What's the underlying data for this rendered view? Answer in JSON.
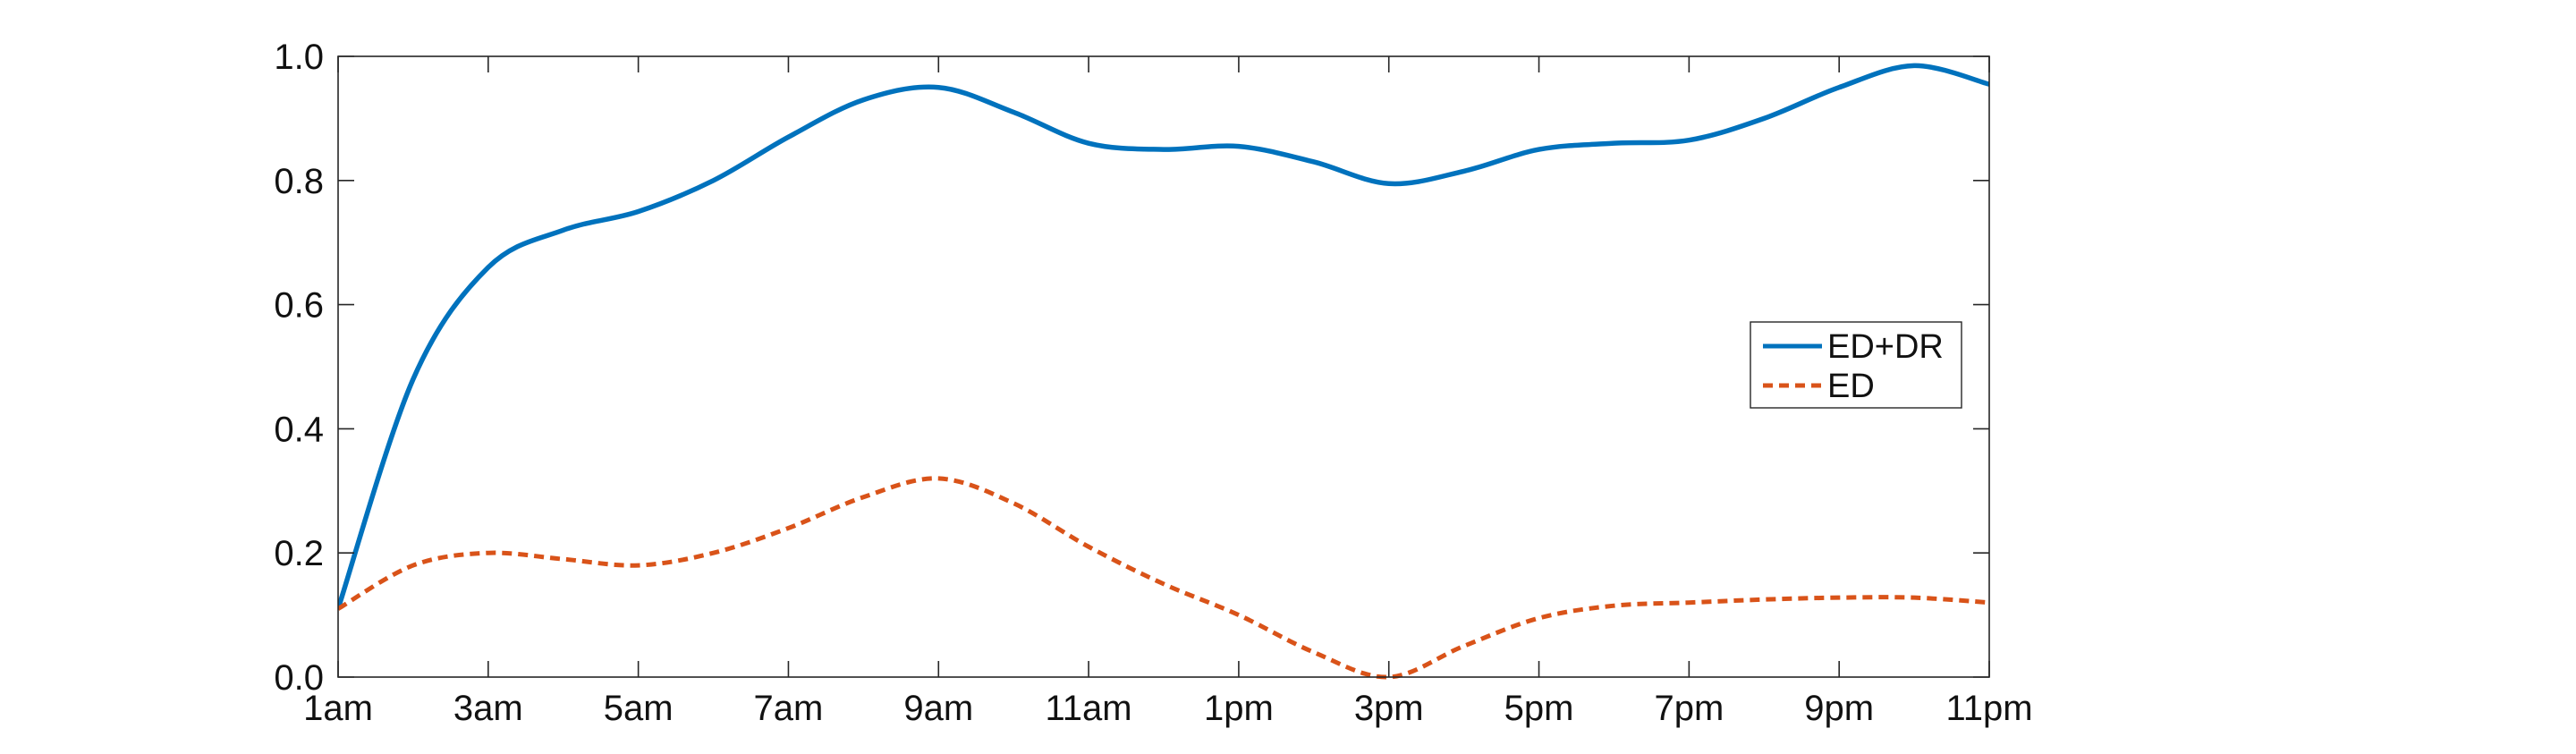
{
  "chart_data": {
    "type": "line",
    "title": "",
    "xlabel": "",
    "ylabel": "",
    "x": [
      1,
      2,
      3,
      4,
      5,
      6,
      7,
      8,
      9,
      10,
      11,
      12,
      13,
      14,
      15,
      16,
      17,
      18,
      19,
      20,
      21,
      22,
      23
    ],
    "xticks": [
      {
        "x": 1,
        "label": "1am"
      },
      {
        "x": 3,
        "label": "3am"
      },
      {
        "x": 5,
        "label": "5am"
      },
      {
        "x": 7,
        "label": "7am"
      },
      {
        "x": 9,
        "label": "9am"
      },
      {
        "x": 11,
        "label": "11am"
      },
      {
        "x": 13,
        "label": "1pm"
      },
      {
        "x": 15,
        "label": "3pm"
      },
      {
        "x": 17,
        "label": "5pm"
      },
      {
        "x": 19,
        "label": "7pm"
      },
      {
        "x": 21,
        "label": "9pm"
      },
      {
        "x": 23,
        "label": "11pm"
      }
    ],
    "yticks": [
      {
        "y": 0.0,
        "label": "0.0"
      },
      {
        "y": 0.2,
        "label": "0.2"
      },
      {
        "y": 0.4,
        "label": "0.4"
      },
      {
        "y": 0.6,
        "label": "0.6"
      },
      {
        "y": 0.8,
        "label": "0.8"
      },
      {
        "y": 1.0,
        "label": "1.0"
      }
    ],
    "xlim": [
      1,
      23
    ],
    "ylim": [
      0,
      1
    ],
    "grid": false,
    "legend_position": "right",
    "series": [
      {
        "name": "ED+DR",
        "color": "#0072BD",
        "dash": "solid",
        "values": [
          0.11,
          0.48,
          0.66,
          0.72,
          0.75,
          0.8,
          0.87,
          0.93,
          0.95,
          0.91,
          0.86,
          0.85,
          0.855,
          0.83,
          0.795,
          0.815,
          0.85,
          0.86,
          0.865,
          0.9,
          0.95,
          0.985,
          0.955
        ]
      },
      {
        "name": "ED",
        "color": "#D95319",
        "dash": "dashed",
        "values": [
          0.11,
          0.18,
          0.2,
          0.19,
          0.18,
          0.2,
          0.24,
          0.29,
          0.32,
          0.28,
          0.21,
          0.15,
          0.1,
          0.04,
          0.0,
          0.05,
          0.095,
          0.115,
          0.12,
          0.125,
          0.128,
          0.128,
          0.12
        ]
      }
    ]
  }
}
